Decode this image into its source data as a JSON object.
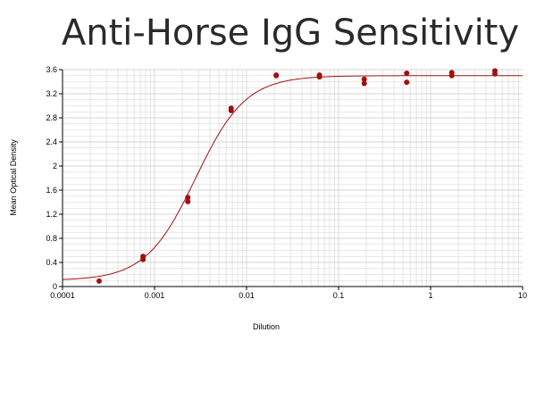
{
  "chart_data": {
    "type": "scatter",
    "title": "Anti-Horse IgG Sensitivity",
    "xlabel": "Dilution",
    "ylabel": "Mean Optical Density",
    "x_scale": "log",
    "xlim": [
      0.0001,
      10
    ],
    "ylim": [
      0,
      3.6
    ],
    "x_ticks": [
      "0.0001",
      "0.001",
      "0.01",
      "0.1",
      "1",
      "10"
    ],
    "y_ticks": [
      "0",
      "0.4",
      "0.8",
      "1.2",
      "1.6",
      "2",
      "2.4",
      "2.8",
      "3.2",
      "3.6"
    ],
    "grid": true,
    "colors": {
      "series": "#a01010",
      "grid": "#d4d4d4",
      "axis": "#000000"
    },
    "points": [
      {
        "x": 0.00025,
        "y": 0.09
      },
      {
        "x": 0.00075,
        "y": 0.45
      },
      {
        "x": 0.00075,
        "y": 0.5
      },
      {
        "x": 0.0023,
        "y": 1.41
      },
      {
        "x": 0.0023,
        "y": 1.48
      },
      {
        "x": 0.0068,
        "y": 2.92
      },
      {
        "x": 0.0068,
        "y": 2.96
      },
      {
        "x": 0.021,
        "y": 3.5
      },
      {
        "x": 0.021,
        "y": 3.51
      },
      {
        "x": 0.062,
        "y": 3.48
      },
      {
        "x": 0.062,
        "y": 3.51
      },
      {
        "x": 0.19,
        "y": 3.37
      },
      {
        "x": 0.19,
        "y": 3.44
      },
      {
        "x": 0.55,
        "y": 3.39
      },
      {
        "x": 0.55,
        "y": 3.54
      },
      {
        "x": 1.7,
        "y": 3.5
      },
      {
        "x": 1.7,
        "y": 3.55
      },
      {
        "x": 5.0,
        "y": 3.53
      },
      {
        "x": 5.0,
        "y": 3.58
      }
    ],
    "fit": {
      "model": "4PL",
      "bottom": 0.1,
      "top": 3.5,
      "ec50": 0.0028,
      "hill": 1.6
    }
  }
}
